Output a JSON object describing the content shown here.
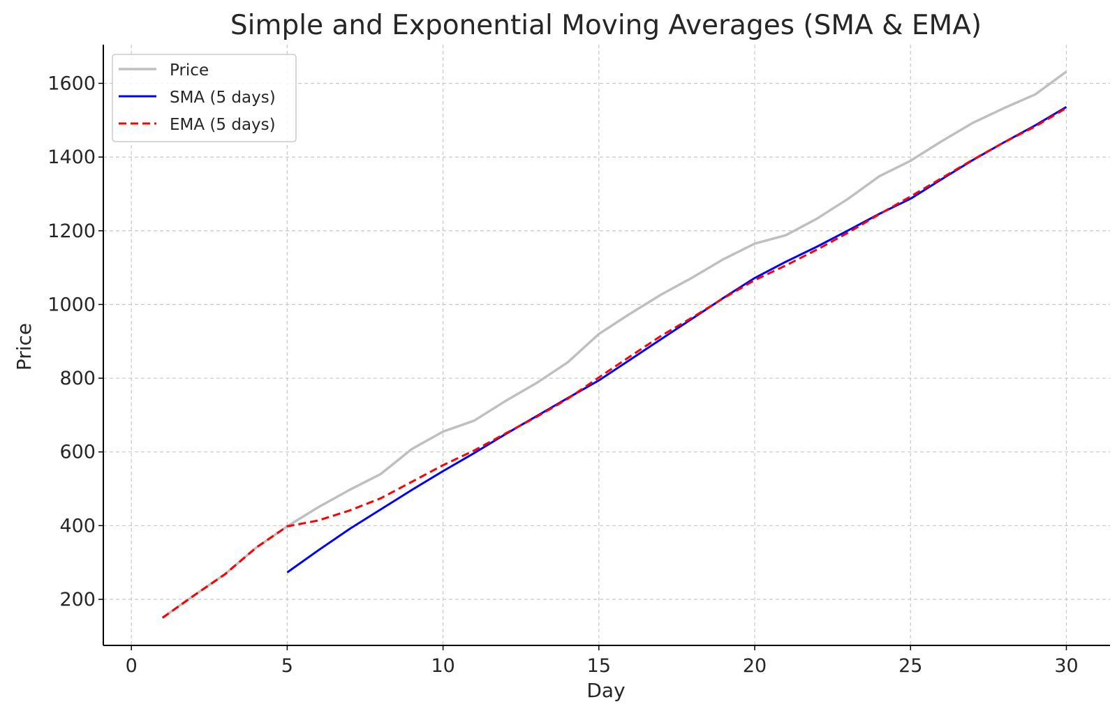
{
  "chart_data": {
    "type": "line",
    "title": "Simple and Exponential Moving Averages (SMA & EMA)",
    "xlabel": "Day",
    "ylabel": "Price",
    "xlim": [
      -0.9,
      31.4
    ],
    "ylim": [
      75,
      1705
    ],
    "xticks": [
      0,
      5,
      10,
      15,
      20,
      25,
      30
    ],
    "yticks": [
      200,
      400,
      600,
      800,
      1000,
      1200,
      1400,
      1600
    ],
    "grid": true,
    "legend_position": "top-left",
    "series": [
      {
        "name": "Price",
        "color": "#bfbfbf",
        "dash": "solid",
        "x": [
          1,
          2,
          3,
          4,
          5,
          6,
          7,
          8,
          9,
          10,
          11,
          12,
          13,
          14,
          15,
          16,
          17,
          18,
          19,
          20,
          21,
          22,
          23,
          24,
          25,
          26,
          27,
          28,
          29,
          30
        ],
        "values": [
          150,
          210,
          268,
          340,
          398,
          450,
          497,
          540,
          608,
          655,
          685,
          738,
          787,
          843,
          920,
          975,
          1027,
          1073,
          1123,
          1165,
          1188,
          1233,
          1287,
          1348,
          1390,
          1443,
          1493,
          1533,
          1570,
          1632
        ]
      },
      {
        "name": "SMA (5 days)",
        "color": "#0000ff",
        "dash": "solid",
        "x": [
          5,
          6,
          7,
          8,
          9,
          10,
          11,
          12,
          13,
          14,
          15,
          16,
          17,
          18,
          19,
          20,
          21,
          22,
          23,
          24,
          25,
          26,
          27,
          28,
          29,
          30
        ],
        "values": [
          273,
          333,
          391,
          444,
          497,
          548,
          597,
          648,
          697,
          746,
          794,
          850,
          906,
          962,
          1018,
          1072,
          1116,
          1157,
          1201,
          1246,
          1287,
          1340,
          1392,
          1440,
          1486,
          1536
        ]
      },
      {
        "name": "EMA (5 days)",
        "color": "#ff0000",
        "dash": "dashed",
        "x": [
          1,
          2,
          3,
          4,
          5,
          6,
          7,
          8,
          9,
          10,
          11,
          12,
          13,
          14,
          15,
          16,
          17,
          18,
          19,
          20,
          21,
          22,
          23,
          24,
          25,
          26,
          27,
          28,
          29,
          30
        ],
        "values": [
          150,
          210,
          268,
          340,
          398,
          414,
          441,
          474,
          519,
          564,
          604,
          650,
          695,
          744,
          802,
          859,
          915,
          965,
          1017,
          1066,
          1106,
          1149,
          1195,
          1245,
          1293,
          1343,
          1393,
          1440,
          1483,
          1533
        ]
      }
    ]
  }
}
